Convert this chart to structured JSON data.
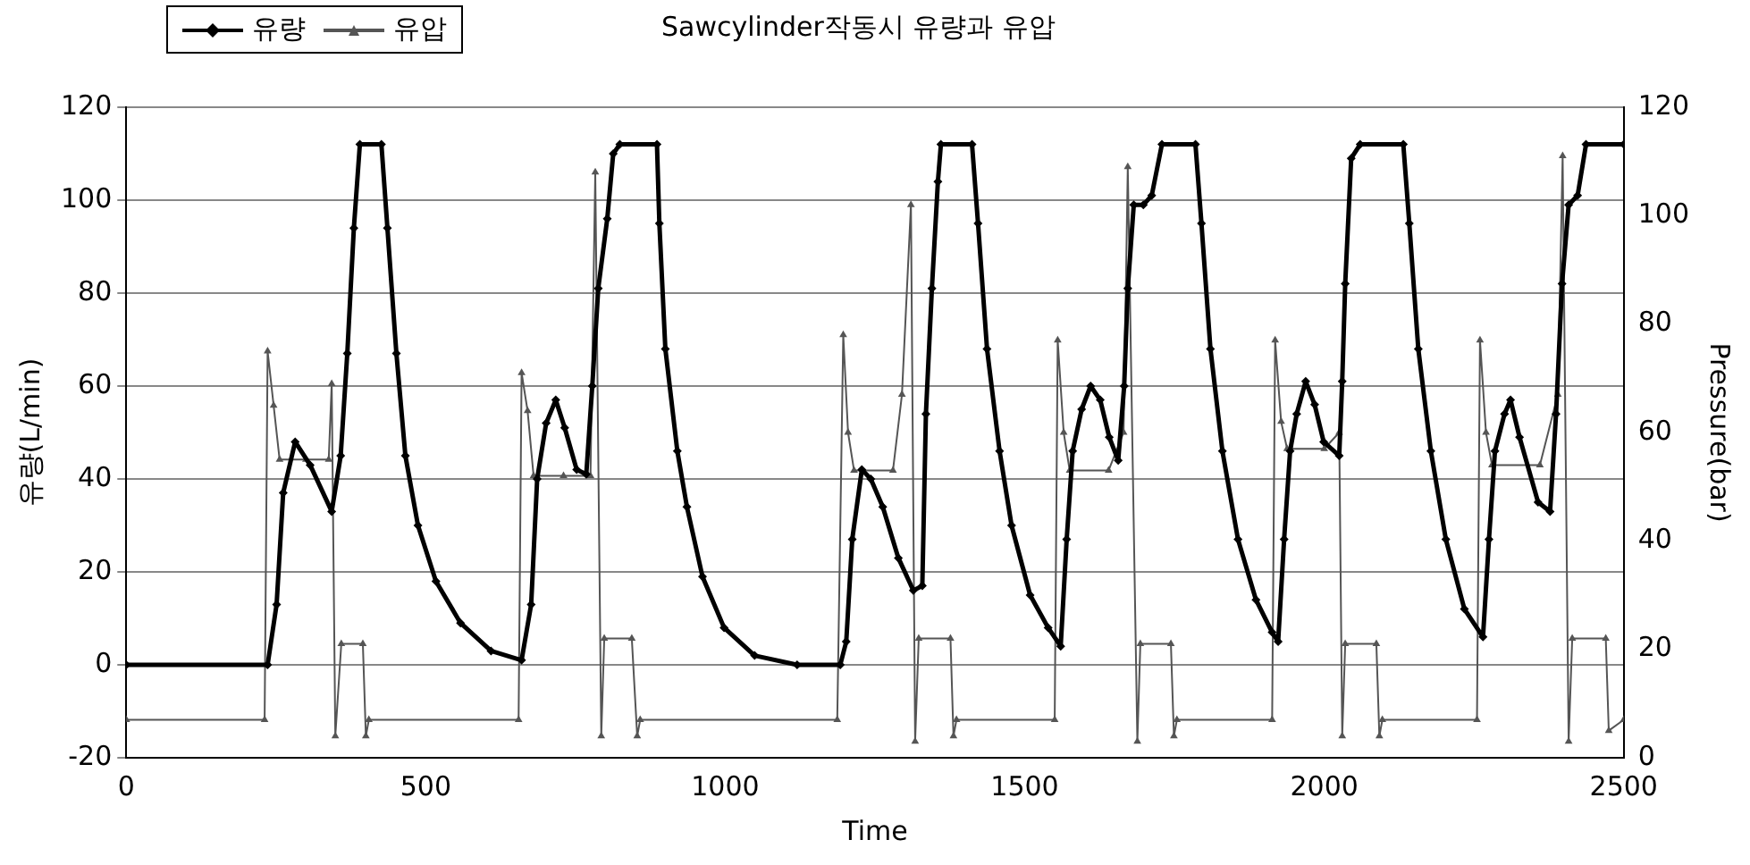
{
  "chart_data": {
    "type": "line",
    "title": "Sawcylinder작동시 유량과 유압",
    "xlabel": "Time",
    "ylabel": "유량(L/min)",
    "y2label": "Pressure(bar)",
    "xlim": [
      0,
      2500
    ],
    "xticks": [
      0,
      500,
      1000,
      1500,
      2000,
      2500
    ],
    "ylim": [
      -20,
      120
    ],
    "yticks": [
      -20,
      0,
      20,
      40,
      60,
      80,
      100,
      120
    ],
    "y2lim": [
      0,
      120
    ],
    "y2ticks": [
      0,
      20,
      40,
      60,
      80,
      100,
      120
    ],
    "grid": "y",
    "legend": "top left",
    "series": [
      {
        "name": "유량",
        "color": "#000000",
        "marker": "diamond",
        "x": [
          0,
          236,
          251,
          262,
          282,
          307,
          343,
          358,
          369,
          380,
          390,
          426,
          436,
          451,
          466,
          487,
          517,
          558,
          609,
          660,
          676,
          686,
          701,
          717,
          732,
          752,
          768,
          778,
          788,
          803,
          813,
          824,
          886,
          890,
          900,
          920,
          936,
          962,
          998,
          1049,
          1120,
          1192,
          1202,
          1212,
          1228,
          1243,
          1263,
          1289,
          1314,
          1329,
          1335,
          1345,
          1355,
          1360,
          1412,
          1422,
          1437,
          1458,
          1478,
          1509,
          1539,
          1560,
          1570,
          1580,
          1595,
          1610,
          1626,
          1641,
          1656,
          1666,
          1672,
          1682,
          1698,
          1712,
          1729,
          1785,
          1795,
          1810,
          1830,
          1856,
          1886,
          1913,
          1923,
          1933,
          1943,
          1954,
          1969,
          1984,
          1999,
          2025,
          2030,
          2035,
          2045,
          2060,
          2132,
          2142,
          2157,
          2178,
          2203,
          2234,
          2265,
          2275,
          2285,
          2301,
          2311,
          2326,
          2357,
          2377,
          2387,
          2397,
          2408,
          2423,
          2437,
          2500
        ],
        "values": [
          0,
          0,
          13,
          37,
          48,
          43,
          33,
          45,
          67,
          94,
          112,
          112,
          94,
          67,
          45,
          30,
          18,
          9,
          3,
          1,
          13,
          40,
          52,
          57,
          51,
          42,
          41,
          60,
          81,
          96,
          110,
          112,
          112,
          95,
          68,
          46,
          34,
          19,
          8,
          2,
          0,
          0,
          5,
          27,
          42,
          40,
          34,
          23,
          16,
          17,
          54,
          81,
          104,
          112,
          112,
          95,
          68,
          46,
          30,
          15,
          8,
          4,
          27,
          46,
          55,
          60,
          57,
          49,
          44,
          60,
          81,
          99,
          99,
          101,
          112,
          112,
          95,
          68,
          46,
          27,
          14,
          7,
          5,
          27,
          46,
          54,
          61,
          56,
          48,
          45,
          61,
          82,
          109,
          112,
          112,
          95,
          68,
          46,
          27,
          12,
          6,
          27,
          46,
          54,
          57,
          49,
          35,
          33,
          54,
          82,
          99,
          101,
          112,
          112
        ]
      },
      {
        "name": "유압",
        "color": "#555555",
        "marker": "triangle",
        "axis": "y2",
        "x": [
          0,
          231,
          236,
          246,
          256,
          300,
          338,
          343,
          349,
          359,
          395,
          400,
          405,
          655,
          660,
          670,
          680,
          730,
          775,
          783,
          793,
          798,
          844,
          853,
          858,
          1187,
          1197,
          1205,
          1215,
          1280,
          1295,
          1310,
          1317,
          1323,
          1376,
          1381,
          1386,
          1550,
          1555,
          1565,
          1575,
          1640,
          1665,
          1672,
          1688,
          1693,
          1744,
          1749,
          1754,
          1913,
          1918,
          1928,
          1938,
          2000,
          2025,
          2030,
          2035,
          2087,
          2092,
          2097,
          2255,
          2260,
          2270,
          2280,
          2360,
          2390,
          2398,
          2408,
          2414,
          2470,
          2475,
          2500
        ],
        "values": [
          7,
          7,
          75,
          65,
          55,
          55,
          55,
          69,
          4,
          21,
          21,
          4,
          7,
          7,
          71,
          64,
          52,
          52,
          52,
          108,
          4,
          22,
          22,
          4,
          7,
          7,
          78,
          60,
          53,
          53,
          67,
          102,
          3,
          22,
          22,
          4,
          7,
          7,
          77,
          60,
          53,
          53,
          60,
          109,
          3,
          21,
          21,
          4,
          7,
          7,
          77,
          62,
          57,
          57,
          60,
          4,
          21,
          21,
          4,
          7,
          7,
          77,
          60,
          54,
          54,
          67,
          111,
          3,
          22,
          22,
          5,
          7
        ]
      }
    ]
  }
}
